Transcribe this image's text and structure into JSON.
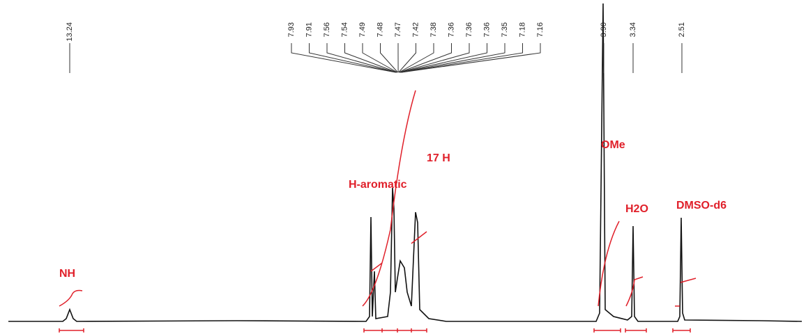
{
  "peak_labels": {
    "single_left": [
      "13.24"
    ],
    "cluster": [
      "7.93",
      "7.91",
      "7.56",
      "7.54",
      "7.49",
      "7.48",
      "7.47",
      "7.42",
      "7.38",
      "7.36",
      "7.36",
      "7.36",
      "7.35",
      "7.18",
      "7.16"
    ],
    "single_right": [
      "3.90",
      "3.34",
      "2.51"
    ]
  },
  "annotations": [
    "NH",
    "H-aromatic",
    "17 H",
    "OMe",
    "H2O",
    "DMSO-d6"
  ]
}
